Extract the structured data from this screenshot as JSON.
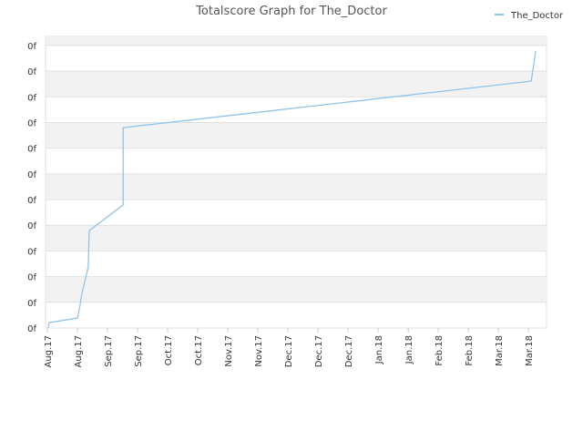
{
  "chart_data": {
    "type": "line",
    "title": "Totalscore Graph for The_Doctor",
    "xlim": [
      -0.06,
      16.6
    ],
    "xticks": [
      {
        "value": 0,
        "label": "Aug.17"
      },
      {
        "value": 1,
        "label": "Aug.17"
      },
      {
        "value": 2,
        "label": "Sep.17"
      },
      {
        "value": 3,
        "label": "Sep.17"
      },
      {
        "value": 4,
        "label": "Oct.17"
      },
      {
        "value": 5,
        "label": "Oct.17"
      },
      {
        "value": 6,
        "label": "Nov.17"
      },
      {
        "value": 7,
        "label": "Nov.17"
      },
      {
        "value": 8,
        "label": "Dec.17"
      },
      {
        "value": 9,
        "label": "Dec.17"
      },
      {
        "value": 10,
        "label": "Dec.17"
      },
      {
        "value": 11,
        "label": "Jan.18"
      },
      {
        "value": 12,
        "label": "Jan.18"
      },
      {
        "value": 13,
        "label": "Feb.18"
      },
      {
        "value": 14,
        "label": "Feb.18"
      },
      {
        "value": 15,
        "label": "Mar.18"
      },
      {
        "value": 16,
        "label": "Mar.18"
      }
    ],
    "ylim": [
      0,
      11.35
    ],
    "yticks": [
      {
        "value": 0,
        "label": "0f"
      },
      {
        "value": 1,
        "label": "0f"
      },
      {
        "value": 2,
        "label": "0f"
      },
      {
        "value": 3,
        "label": "0f"
      },
      {
        "value": 4,
        "label": "0f"
      },
      {
        "value": 5,
        "label": "0f"
      },
      {
        "value": 6,
        "label": "0f"
      },
      {
        "value": 7,
        "label": "0f"
      },
      {
        "value": 8,
        "label": "0f"
      },
      {
        "value": 9,
        "label": "0f"
      },
      {
        "value": 10,
        "label": "0f"
      },
      {
        "value": 11,
        "label": "0f"
      }
    ],
    "grid": true,
    "legend": "top-right",
    "series": [
      {
        "name": "The_Doctor",
        "color": "#8ec4ec",
        "x": [
          0.03,
          0.06,
          1.0,
          1.09,
          1.15,
          1.36,
          1.39,
          2.52,
          2.52,
          16.09,
          16.24
        ],
        "values": [
          0,
          0.21,
          0.39,
          0.89,
          1.35,
          2.38,
          3.79,
          4.79,
          7.8,
          9.61,
          10.78
        ]
      }
    ]
  }
}
